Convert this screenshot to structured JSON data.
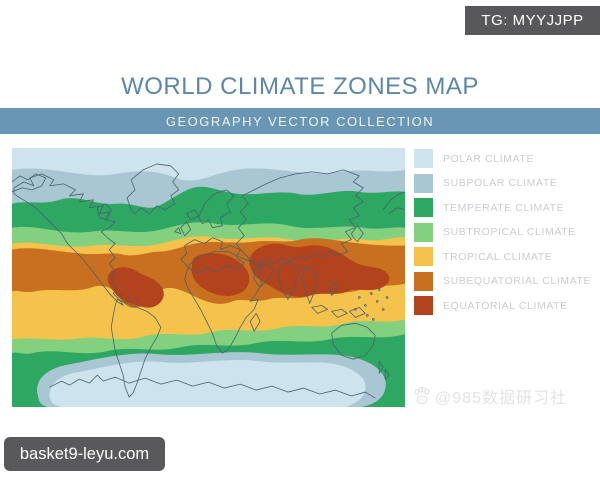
{
  "badges": {
    "telegram": "TG: MYYJJPP",
    "website": "basket9-leyu.com"
  },
  "header": {
    "title": "WORLD CLIMATE ZONES MAP",
    "subtitle": "GEOGRAPHY VECTOR COLLECTION"
  },
  "legend": {
    "items": [
      {
        "label": "POLAR CLIMATE",
        "color": "#cde4ee"
      },
      {
        "label": "SUBPOLAR CLIMATE",
        "color": "#a9c7d3"
      },
      {
        "label": "TEMPERATE CLIMATE",
        "color": "#2ea763"
      },
      {
        "label": "SUBTROPICAL CLIMATE",
        "color": "#83d07e"
      },
      {
        "label": "TROPICAL CLIMATE",
        "color": "#f5c24c"
      },
      {
        "label": "SUBEQUATORIAL CLIMATE",
        "color": "#c8701f"
      },
      {
        "label": "EQUATORIAL CLIMATE",
        "color": "#b2431d"
      }
    ]
  },
  "watermark": {
    "text": "@985数据研习社",
    "icon": "baidu-paw-icon"
  },
  "colors": {
    "title_text": "#5d87a8",
    "subtitle_bar": "#6a96b5",
    "badge_background": "#58585a",
    "legend_label_text": "#c9cdd1",
    "coastline": "#46626f"
  }
}
